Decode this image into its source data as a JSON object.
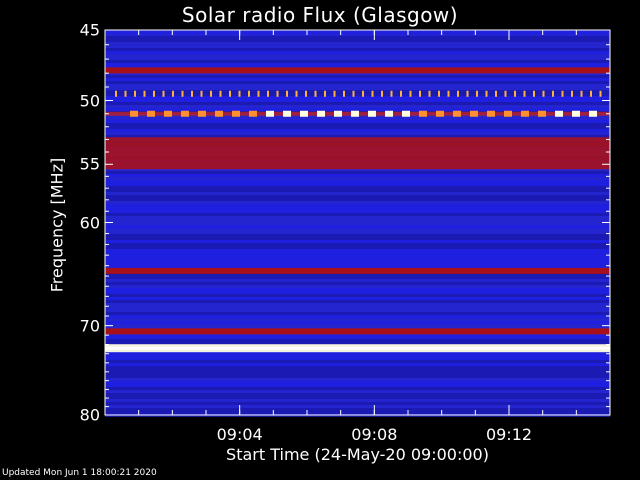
{
  "chart_data": {
    "type": "heatmap",
    "title": "Solar radio Flux (Glasgow)",
    "xlabel": "Start Time (24-May-20 09:00:00)",
    "ylabel": "Frequency [MHz]",
    "xlim": [
      "09:00:00",
      "09:15:00"
    ],
    "ylim": [
      45,
      80
    ],
    "y_scale": "log",
    "xticks": [
      "09:04",
      "09:08",
      "09:12"
    ],
    "yticks": [
      45,
      50,
      55,
      60,
      70,
      80
    ],
    "colors": {
      "background": "#000000",
      "low": "#1a1aa0",
      "mid": "#2020e0",
      "high": "#b01010",
      "peak": "#ffffe0"
    },
    "bands": [
      {
        "freq_mhz": 45.2,
        "level": "mid"
      },
      {
        "freq_mhz": 47.8,
        "level": "high"
      },
      {
        "freq_mhz": 49.5,
        "level": "peak",
        "pattern": "dotted"
      },
      {
        "freq_mhz": 51.0,
        "level": "peak",
        "pattern": "dashed"
      },
      {
        "freq_mhz": 54.1,
        "level": "high"
      },
      {
        "freq_mhz": 60.4,
        "level": "mid"
      },
      {
        "freq_mhz": 64.5,
        "level": "high"
      },
      {
        "freq_mhz": 70.6,
        "level": "high"
      },
      {
        "freq_mhz": 72.4,
        "level": "peak"
      },
      {
        "freq_mhz": 76.2,
        "level": "mid"
      }
    ]
  },
  "footer": "Updated Mon Jun  1 18:00:21 2020"
}
